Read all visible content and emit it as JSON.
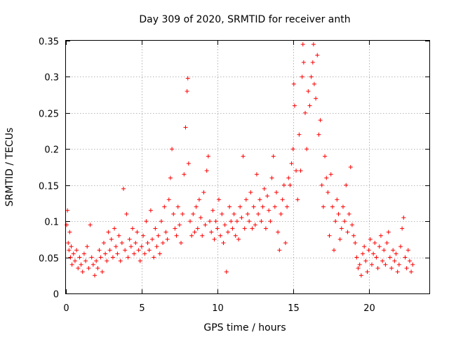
{
  "chart_data": {
    "type": "scatter",
    "title": "Day 309 of 2020, SRMTID for receiver anth",
    "xlabel": "GPS time / hours",
    "ylabel": "SRMTID / TECUs",
    "xlim": [
      0,
      24
    ],
    "ylim": [
      0,
      0.35
    ],
    "x_ticks": [
      0,
      5,
      10,
      15,
      20
    ],
    "x_tick_labels": [
      "0",
      "5",
      "10",
      "15",
      "20"
    ],
    "y_ticks": [
      0,
      0.05,
      0.1,
      0.15,
      0.2,
      0.25,
      0.3,
      0.35
    ],
    "y_tick_labels": [
      "0",
      "0.05",
      "0.1",
      "0.15",
      "0.2",
      "0.25",
      "0.3",
      "0.35"
    ],
    "grid": true,
    "marker": "+",
    "marker_color": "#ff0000",
    "series": [
      {
        "name": "SRMTID",
        "points": [
          [
            0.05,
            0.095
          ],
          [
            0.1,
            0.115
          ],
          [
            0.15,
            0.07
          ],
          [
            0.2,
            0.06
          ],
          [
            0.25,
            0.085
          ],
          [
            0.3,
            0.05
          ],
          [
            0.35,
            0.065
          ],
          [
            0.4,
            0.04
          ],
          [
            0.5,
            0.055
          ],
          [
            0.6,
            0.045
          ],
          [
            0.7,
            0.06
          ],
          [
            0.8,
            0.035
          ],
          [
            0.9,
            0.05
          ],
          [
            1.0,
            0.04
          ],
          [
            1.1,
            0.03
          ],
          [
            1.2,
            0.055
          ],
          [
            1.3,
            0.045
          ],
          [
            1.4,
            0.065
          ],
          [
            1.5,
            0.035
          ],
          [
            1.6,
            0.095
          ],
          [
            1.7,
            0.05
          ],
          [
            1.8,
            0.04
          ],
          [
            1.9,
            0.025
          ],
          [
            2.0,
            0.045
          ],
          [
            2.1,
            0.035
          ],
          [
            2.2,
            0.06
          ],
          [
            2.3,
            0.05
          ],
          [
            2.4,
            0.03
          ],
          [
            2.5,
            0.07
          ],
          [
            2.6,
            0.055
          ],
          [
            2.7,
            0.045
          ],
          [
            2.8,
            0.085
          ],
          [
            2.9,
            0.06
          ],
          [
            3.0,
            0.075
          ],
          [
            3.1,
            0.05
          ],
          [
            3.2,
            0.09
          ],
          [
            3.3,
            0.065
          ],
          [
            3.4,
            0.055
          ],
          [
            3.5,
            0.08
          ],
          [
            3.6,
            0.045
          ],
          [
            3.7,
            0.07
          ],
          [
            3.8,
            0.145
          ],
          [
            3.9,
            0.06
          ],
          [
            4.0,
            0.11
          ],
          [
            4.1,
            0.05
          ],
          [
            4.2,
            0.075
          ],
          [
            4.3,
            0.065
          ],
          [
            4.4,
            0.09
          ],
          [
            4.5,
            0.055
          ],
          [
            4.6,
            0.07
          ],
          [
            4.7,
            0.085
          ],
          [
            4.8,
            0.06
          ],
          [
            4.9,
            0.045
          ],
          [
            5.0,
            0.065
          ],
          [
            5.1,
            0.08
          ],
          [
            5.2,
            0.055
          ],
          [
            5.3,
            0.1
          ],
          [
            5.4,
            0.07
          ],
          [
            5.5,
            0.06
          ],
          [
            5.6,
            0.115
          ],
          [
            5.7,
            0.075
          ],
          [
            5.8,
            0.05
          ],
          [
            5.9,
            0.09
          ],
          [
            6.0,
            0.065
          ],
          [
            6.1,
            0.08
          ],
          [
            6.2,
            0.055
          ],
          [
            6.3,
            0.1
          ],
          [
            6.4,
            0.07
          ],
          [
            6.5,
            0.12
          ],
          [
            6.6,
            0.085
          ],
          [
            6.7,
            0.075
          ],
          [
            6.8,
            0.13
          ],
          [
            6.9,
            0.16
          ],
          [
            7.0,
            0.2
          ],
          [
            7.1,
            0.11
          ],
          [
            7.2,
            0.09
          ],
          [
            7.3,
            0.08
          ],
          [
            7.4,
            0.12
          ],
          [
            7.5,
            0.095
          ],
          [
            7.6,
            0.07
          ],
          [
            7.7,
            0.11
          ],
          [
            7.8,
            0.165
          ],
          [
            7.9,
            0.23
          ],
          [
            8.0,
            0.28
          ],
          [
            8.05,
            0.298
          ],
          [
            8.1,
            0.18
          ],
          [
            8.2,
            0.1
          ],
          [
            8.3,
            0.08
          ],
          [
            8.4,
            0.11
          ],
          [
            8.5,
            0.085
          ],
          [
            8.6,
            0.12
          ],
          [
            8.7,
            0.09
          ],
          [
            8.8,
            0.13
          ],
          [
            8.9,
            0.105
          ],
          [
            9.0,
            0.08
          ],
          [
            9.1,
            0.14
          ],
          [
            9.2,
            0.095
          ],
          [
            9.3,
            0.17
          ],
          [
            9.4,
            0.19
          ],
          [
            9.5,
            0.1
          ],
          [
            9.6,
            0.085
          ],
          [
            9.7,
            0.115
          ],
          [
            9.8,
            0.075
          ],
          [
            9.9,
            0.1
          ],
          [
            10.0,
            0.09
          ],
          [
            10.1,
            0.13
          ],
          [
            10.2,
            0.08
          ],
          [
            10.3,
            0.11
          ],
          [
            10.4,
            0.07
          ],
          [
            10.5,
            0.095
          ],
          [
            10.6,
            0.03
          ],
          [
            10.7,
            0.085
          ],
          [
            10.8,
            0.12
          ],
          [
            10.9,
            0.1
          ],
          [
            11.0,
            0.09
          ],
          [
            11.1,
            0.11
          ],
          [
            11.2,
            0.08
          ],
          [
            11.3,
            0.1
          ],
          [
            11.4,
            0.075
          ],
          [
            11.5,
            0.12
          ],
          [
            11.6,
            0.105
          ],
          [
            11.7,
            0.19
          ],
          [
            11.8,
            0.09
          ],
          [
            11.9,
            0.13
          ],
          [
            12.0,
            0.11
          ],
          [
            12.1,
            0.1
          ],
          [
            12.2,
            0.14
          ],
          [
            12.3,
            0.09
          ],
          [
            12.4,
            0.12
          ],
          [
            12.5,
            0.095
          ],
          [
            12.6,
            0.165
          ],
          [
            12.7,
            0.11
          ],
          [
            12.8,
            0.13
          ],
          [
            12.9,
            0.1
          ],
          [
            13.0,
            0.12
          ],
          [
            13.1,
            0.145
          ],
          [
            13.2,
            0.09
          ],
          [
            13.3,
            0.135
          ],
          [
            13.4,
            0.115
          ],
          [
            13.5,
            0.1
          ],
          [
            13.6,
            0.16
          ],
          [
            13.7,
            0.19
          ],
          [
            13.8,
            0.12
          ],
          [
            13.9,
            0.14
          ],
          [
            14.0,
            0.085
          ],
          [
            14.1,
            0.06
          ],
          [
            14.2,
            0.11
          ],
          [
            14.3,
            0.13
          ],
          [
            14.4,
            0.15
          ],
          [
            14.5,
            0.07
          ],
          [
            14.6,
            0.12
          ],
          [
            14.7,
            0.16
          ],
          [
            14.8,
            0.15
          ],
          [
            14.9,
            0.18
          ],
          [
            15.0,
            0.2
          ],
          [
            15.05,
            0.29
          ],
          [
            15.1,
            0.26
          ],
          [
            15.2,
            0.17
          ],
          [
            15.3,
            0.13
          ],
          [
            15.4,
            0.22
          ],
          [
            15.5,
            0.17
          ],
          [
            15.6,
            0.3
          ],
          [
            15.65,
            0.345
          ],
          [
            15.7,
            0.32
          ],
          [
            15.8,
            0.25
          ],
          [
            15.9,
            0.2
          ],
          [
            16.0,
            0.28
          ],
          [
            16.1,
            0.26
          ],
          [
            16.2,
            0.3
          ],
          [
            16.3,
            0.32
          ],
          [
            16.35,
            0.345
          ],
          [
            16.4,
            0.29
          ],
          [
            16.5,
            0.27
          ],
          [
            16.6,
            0.33
          ],
          [
            16.7,
            0.22
          ],
          [
            16.8,
            0.24
          ],
          [
            16.9,
            0.15
          ],
          [
            17.0,
            0.12
          ],
          [
            17.1,
            0.19
          ],
          [
            17.2,
            0.16
          ],
          [
            17.3,
            0.14
          ],
          [
            17.4,
            0.08
          ],
          [
            17.5,
            0.165
          ],
          [
            17.6,
            0.12
          ],
          [
            17.7,
            0.06
          ],
          [
            17.8,
            0.1
          ],
          [
            17.9,
            0.13
          ],
          [
            18.0,
            0.11
          ],
          [
            18.1,
            0.075
          ],
          [
            18.2,
            0.09
          ],
          [
            18.3,
            0.12
          ],
          [
            18.4,
            0.1
          ],
          [
            18.5,
            0.15
          ],
          [
            18.6,
            0.085
          ],
          [
            18.7,
            0.11
          ],
          [
            18.8,
            0.175
          ],
          [
            18.9,
            0.095
          ],
          [
            19.0,
            0.08
          ],
          [
            19.1,
            0.07
          ],
          [
            19.2,
            0.05
          ],
          [
            19.3,
            0.035
          ],
          [
            19.4,
            0.04
          ],
          [
            19.5,
            0.025
          ],
          [
            19.6,
            0.055
          ],
          [
            19.7,
            0.065
          ],
          [
            19.8,
            0.045
          ],
          [
            19.9,
            0.03
          ],
          [
            20.0,
            0.06
          ],
          [
            20.1,
            0.075
          ],
          [
            20.2,
            0.04
          ],
          [
            20.3,
            0.055
          ],
          [
            20.4,
            0.07
          ],
          [
            20.5,
            0.05
          ],
          [
            20.6,
            0.035
          ],
          [
            20.7,
            0.065
          ],
          [
            20.8,
            0.08
          ],
          [
            20.9,
            0.045
          ],
          [
            21.0,
            0.06
          ],
          [
            21.1,
            0.04
          ],
          [
            21.2,
            0.07
          ],
          [
            21.3,
            0.085
          ],
          [
            21.4,
            0.05
          ],
          [
            21.5,
            0.035
          ],
          [
            21.6,
            0.06
          ],
          [
            21.7,
            0.045
          ],
          [
            21.8,
            0.055
          ],
          [
            21.9,
            0.03
          ],
          [
            22.0,
            0.04
          ],
          [
            22.1,
            0.065
          ],
          [
            22.2,
            0.09
          ],
          [
            22.3,
            0.105
          ],
          [
            22.4,
            0.05
          ],
          [
            22.5,
            0.035
          ],
          [
            22.6,
            0.06
          ],
          [
            22.7,
            0.045
          ],
          [
            22.8,
            0.03
          ],
          [
            22.9,
            0.04
          ]
        ]
      }
    ]
  }
}
